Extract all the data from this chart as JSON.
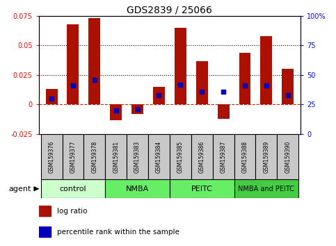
{
  "title": "GDS2839 / 25066",
  "samples": [
    "GSM159376",
    "GSM159377",
    "GSM159378",
    "GSM159381",
    "GSM159383",
    "GSM159384",
    "GSM159385",
    "GSM159386",
    "GSM159387",
    "GSM159388",
    "GSM159389",
    "GSM159390"
  ],
  "log_ratio": [
    0.013,
    0.068,
    0.073,
    -0.013,
    -0.008,
    0.015,
    0.065,
    0.037,
    -0.012,
    0.044,
    0.058,
    0.03
  ],
  "percentile_pct": [
    30,
    41,
    46,
    20,
    21,
    33,
    42,
    36,
    36,
    41,
    41,
    33
  ],
  "groups": [
    {
      "label": "control",
      "start": 0,
      "end": 3,
      "color": "#ccffcc"
    },
    {
      "label": "NMBA",
      "start": 3,
      "end": 6,
      "color": "#66ee66"
    },
    {
      "label": "PEITC",
      "start": 6,
      "end": 9,
      "color": "#66ee66"
    },
    {
      "label": "NMBA and PEITC",
      "start": 9,
      "end": 12,
      "color": "#44cc44"
    }
  ],
  "bar_color": "#aa1100",
  "dot_color": "#0000bb",
  "ylim_left": [
    -0.025,
    0.075
  ],
  "ylim_right": [
    0,
    100
  ],
  "yticks_left": [
    -0.025,
    0,
    0.025,
    0.05,
    0.075
  ],
  "yticks_right": [
    0,
    25,
    50,
    75,
    100
  ],
  "ytick_labels_left": [
    "-0.025",
    "0",
    "0.025",
    "0.05",
    "0.075"
  ],
  "ytick_labels_right": [
    "0",
    "25",
    "50",
    "75",
    "100%"
  ],
  "hlines": [
    0.025,
    0.05
  ],
  "legend_red": "log ratio",
  "legend_blue": "percentile rank within the sample",
  "bar_width": 0.55,
  "sample_box_color": "#c8c8c8",
  "agent_label": "agent"
}
